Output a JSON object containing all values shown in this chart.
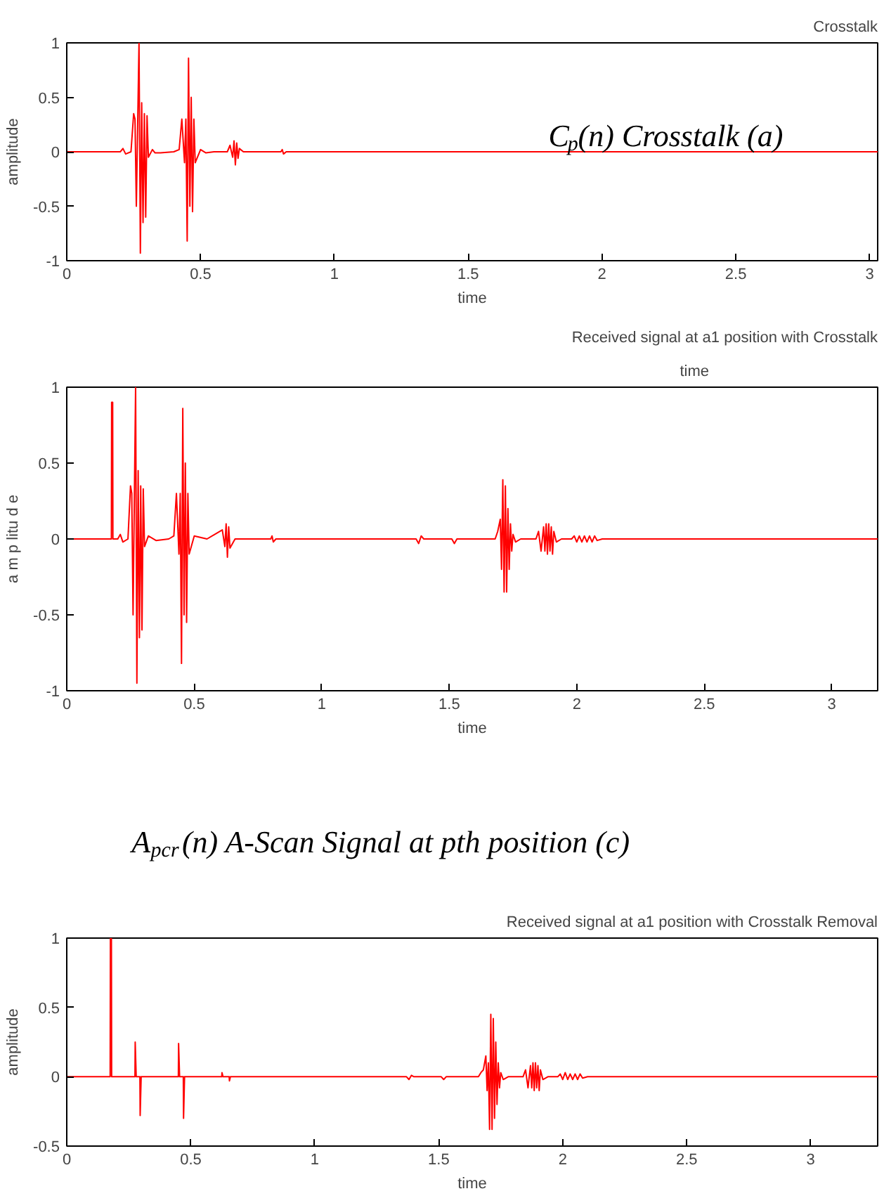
{
  "chart_data": [
    {
      "type": "line",
      "title": "Crosstalk",
      "xlabel": "time",
      "ylabel": "amplitude",
      "xlim": [
        0,
        3.03
      ],
      "ylim": [
        -1,
        1
      ],
      "xticks": [
        0,
        0.5,
        1,
        1.5,
        2,
        2.5,
        3
      ],
      "yticks": [
        -1,
        -0.5,
        0,
        0.5,
        1
      ],
      "grid": false,
      "annotations": [
        "C$_{p}$(n) Crosstalk  (a)"
      ],
      "series": [
        {
          "color": "#ff0000",
          "x": [
            0,
            0.2,
            0.21,
            0.22,
            0.24,
            0.25,
            0.255,
            0.26,
            0.27,
            0.275,
            0.28,
            0.285,
            0.29,
            0.295,
            0.3,
            0.305,
            0.32,
            0.33,
            0.35,
            0.4,
            0.42,
            0.43,
            0.44,
            0.445,
            0.45,
            0.455,
            0.46,
            0.465,
            0.47,
            0.475,
            0.48,
            0.5,
            0.52,
            0.55,
            0.6,
            0.61,
            0.62,
            0.625,
            0.63,
            0.635,
            0.64,
            0.645,
            0.66,
            0.8,
            0.805,
            0.81,
            0.82,
            3.03
          ],
          "values": [
            0,
            0,
            0.03,
            -0.02,
            0,
            0.35,
            0.3,
            -0.5,
            1.0,
            -0.93,
            0.45,
            -0.65,
            0.35,
            -0.6,
            0.33,
            -0.05,
            0.02,
            -0.01,
            -0.01,
            0,
            0.02,
            0.3,
            -0.1,
            0.3,
            -0.82,
            0.86,
            -0.5,
            0.5,
            -0.55,
            0.3,
            -0.1,
            0.02,
            -0.01,
            0,
            0,
            0.06,
            -0.05,
            0.1,
            -0.12,
            0.08,
            -0.06,
            0.03,
            0,
            0,
            0.02,
            -0.02,
            0,
            0
          ]
        }
      ]
    },
    {
      "type": "line",
      "title": "Received signal at a1 position with Crosstalk",
      "xlabel": "time",
      "ylabel": "a m p litu d e",
      "xlim": [
        0,
        3.18
      ],
      "ylim": [
        -1,
        1
      ],
      "xticks": [
        0,
        0.5,
        1,
        1.5,
        2,
        2.5,
        3
      ],
      "yticks": [
        -1,
        -0.5,
        0,
        0.5,
        1
      ],
      "grid": false,
      "annotations": [
        "time"
      ],
      "series": [
        {
          "color": "#ff0000",
          "x": [
            0,
            0.175,
            0.176,
            0.18,
            0.181,
            0.2,
            0.21,
            0.22,
            0.24,
            0.25,
            0.255,
            0.26,
            0.27,
            0.275,
            0.28,
            0.285,
            0.29,
            0.295,
            0.3,
            0.305,
            0.32,
            0.35,
            0.4,
            0.42,
            0.43,
            0.44,
            0.445,
            0.45,
            0.455,
            0.46,
            0.465,
            0.47,
            0.475,
            0.48,
            0.5,
            0.55,
            0.61,
            0.62,
            0.625,
            0.63,
            0.635,
            0.64,
            0.66,
            0.8,
            0.805,
            0.81,
            0.82,
            1.37,
            1.38,
            1.39,
            1.4,
            1.51,
            1.52,
            1.53,
            1.68,
            1.69,
            1.7,
            1.705,
            1.71,
            1.715,
            1.72,
            1.725,
            1.73,
            1.735,
            1.74,
            1.745,
            1.75,
            1.76,
            1.78,
            1.84,
            1.85,
            1.86,
            1.87,
            1.875,
            1.88,
            1.885,
            1.89,
            1.895,
            1.9,
            1.905,
            1.91,
            1.92,
            1.94,
            1.98,
            1.99,
            2.0,
            2.01,
            2.02,
            2.03,
            2.04,
            2.05,
            2.06,
            2.07,
            2.08,
            2.1,
            3.18
          ],
          "values": [
            0,
            0,
            0.9,
            0.9,
            0,
            0,
            0.03,
            -0.02,
            0,
            0.35,
            0.3,
            -0.5,
            1.0,
            -0.95,
            0.45,
            -0.65,
            0.35,
            -0.6,
            0.33,
            -0.05,
            0.02,
            -0.01,
            0,
            0.02,
            0.3,
            -0.1,
            0.3,
            -0.82,
            0.86,
            -0.5,
            0.5,
            -0.55,
            0.3,
            -0.1,
            0.02,
            0,
            0.06,
            -0.05,
            0.1,
            -0.12,
            0.08,
            -0.06,
            0,
            0,
            0.02,
            -0.02,
            0,
            0,
            -0.03,
            0.02,
            0,
            0,
            -0.03,
            0,
            0,
            0.05,
            0.13,
            -0.2,
            0.39,
            -0.35,
            0.35,
            -0.35,
            0.2,
            -0.2,
            0.1,
            -0.08,
            0.03,
            -0.02,
            0,
            0,
            0.05,
            -0.08,
            0.08,
            -0.08,
            0.1,
            -0.1,
            0.1,
            -0.08,
            0.08,
            -0.1,
            0.05,
            -0.02,
            0,
            0,
            0.02,
            -0.02,
            0.02,
            -0.02,
            0.02,
            -0.02,
            0.02,
            -0.02,
            0.02,
            -0.01,
            0,
            0
          ]
        }
      ]
    },
    {
      "type": "line",
      "title": "Received signal at a1 position with Crosstalk Removal",
      "xlabel": "time",
      "ylabel": "amplitude",
      "xlim": [
        0,
        3.27
      ],
      "ylim": [
        -0.5,
        1
      ],
      "xticks": [
        0,
        0.5,
        1,
        1.5,
        2,
        2.5,
        3
      ],
      "yticks": [
        -0.5,
        0,
        0.5,
        1
      ],
      "grid": false,
      "annotations": [
        "A$_{pcr}$(n) A-Scan Signal at pth position (c)"
      ],
      "series": [
        {
          "color": "#ff0000",
          "x": [
            0,
            0.175,
            0.176,
            0.18,
            0.181,
            0.275,
            0.276,
            0.28,
            0.295,
            0.296,
            0.3,
            0.45,
            0.451,
            0.455,
            0.47,
            0.471,
            0.475,
            0.625,
            0.626,
            0.63,
            0.655,
            0.656,
            0.66,
            1.37,
            1.38,
            1.39,
            1.4,
            1.51,
            1.52,
            1.53,
            1.66,
            1.67,
            1.68,
            1.69,
            1.695,
            1.7,
            1.705,
            1.71,
            1.715,
            1.72,
            1.725,
            1.73,
            1.735,
            1.74,
            1.745,
            1.75,
            1.76,
            1.78,
            1.84,
            1.85,
            1.86,
            1.87,
            1.875,
            1.88,
            1.885,
            1.89,
            1.895,
            1.9,
            1.905,
            1.91,
            1.92,
            1.94,
            1.98,
            1.99,
            2.0,
            2.01,
            2.02,
            2.03,
            2.04,
            2.05,
            2.06,
            2.07,
            2.08,
            2.1,
            3.27
          ],
          "values": [
            0,
            0,
            1.0,
            1.0,
            0,
            0,
            0.25,
            0,
            0,
            -0.28,
            0,
            0,
            0.24,
            0,
            0,
            -0.3,
            0,
            0,
            0.03,
            0,
            0,
            -0.03,
            0,
            0,
            -0.02,
            0.01,
            0,
            0,
            -0.02,
            0,
            0,
            0.03,
            0.05,
            0.15,
            -0.1,
            0.1,
            -0.38,
            0.45,
            -0.38,
            0.42,
            -0.3,
            0.25,
            -0.2,
            0.1,
            -0.08,
            0.03,
            -0.02,
            0,
            0,
            0.05,
            -0.08,
            0.08,
            -0.08,
            0.1,
            -0.1,
            0.1,
            -0.08,
            0.08,
            -0.1,
            0.05,
            -0.02,
            0,
            0,
            0.02,
            -0.02,
            0.03,
            -0.02,
            0.02,
            -0.02,
            0.02,
            -0.02,
            0.02,
            -0.01,
            0,
            0
          ]
        }
      ]
    }
  ]
}
